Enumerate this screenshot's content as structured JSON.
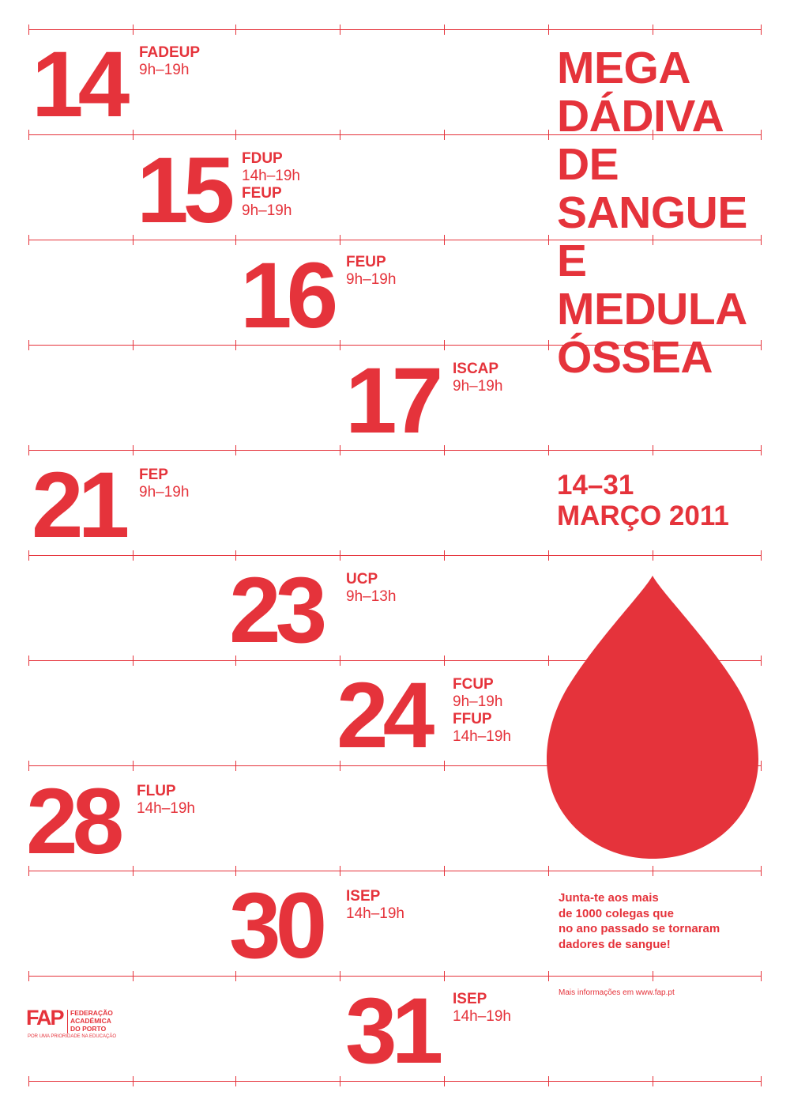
{
  "title_lines": [
    "MEGA",
    "DÁDIVA",
    "DE",
    "SANGUE",
    "E",
    "MEDULA",
    "ÓSSEA"
  ],
  "date_range": "14–31",
  "month_year": "MARÇO 2011",
  "events": [
    {
      "day": "14",
      "slots": [
        {
          "venue": "FADEUP",
          "hours": "9h–19h"
        }
      ]
    },
    {
      "day": "15",
      "slots": [
        {
          "venue": "FDUP",
          "hours": "14h–19h"
        },
        {
          "venue": "FEUP",
          "hours": "9h–19h"
        }
      ]
    },
    {
      "day": "16",
      "slots": [
        {
          "venue": "FEUP",
          "hours": "9h–19h"
        }
      ]
    },
    {
      "day": "17",
      "slots": [
        {
          "venue": "ISCAP",
          "hours": "9h–19h"
        }
      ]
    },
    {
      "day": "21",
      "slots": [
        {
          "venue": "FEP",
          "hours": "9h–19h"
        }
      ]
    },
    {
      "day": "23",
      "slots": [
        {
          "venue": "UCP",
          "hours": "9h–13h"
        }
      ]
    },
    {
      "day": "24",
      "slots": [
        {
          "venue": "FCUP",
          "hours": "9h–19h"
        },
        {
          "venue": "FFUP",
          "hours": "14h–19h"
        }
      ]
    },
    {
      "day": "28",
      "slots": [
        {
          "venue": "FLUP",
          "hours": "14h–19h"
        }
      ]
    },
    {
      "day": "30",
      "slots": [
        {
          "venue": "ISEP",
          "hours": "14h–19h"
        }
      ]
    },
    {
      "day": "31",
      "slots": [
        {
          "venue": "ISEP",
          "hours": "14h–19h"
        }
      ]
    }
  ],
  "callout_lines": [
    "Junta-te aos mais",
    "de 1000 colegas que",
    "no ano passado se tornaram",
    "dadores de sangue!"
  ],
  "more_info": "Mais informações em www.fap.pt",
  "logo": {
    "mark": "FAP",
    "name_lines": [
      "FEDERAÇÃO",
      "ACADÉMICA",
      "DO PORTO"
    ],
    "tagline": "POR UMA PRIORIDADE NA EDUCAÇÃO"
  },
  "drop_icon": "blood-drop-icon",
  "accent_color": "#e5333b"
}
